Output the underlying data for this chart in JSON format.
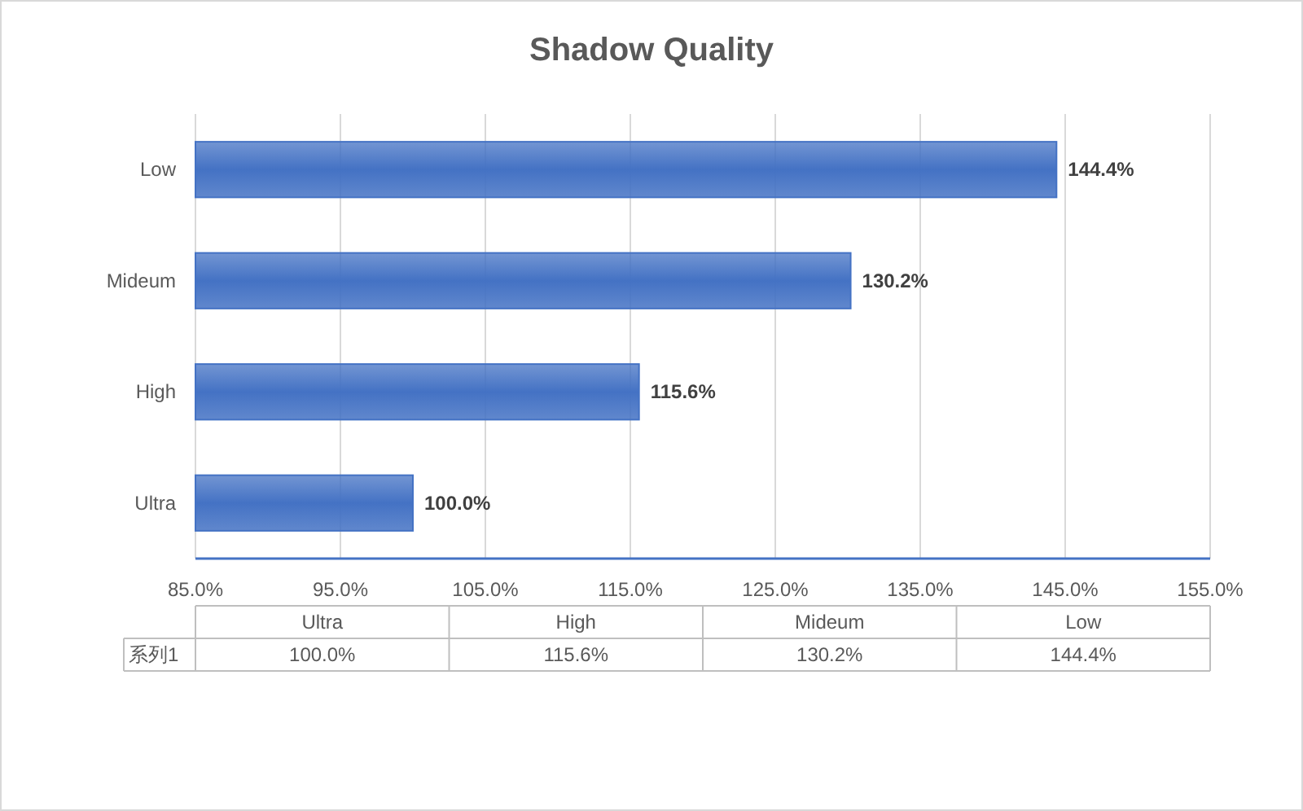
{
  "chart_data": {
    "type": "bar",
    "orientation": "horizontal",
    "title": "Shadow Quality",
    "categories": [
      "Low",
      "Mideum",
      "High",
      "Ultra"
    ],
    "series": [
      {
        "name": "系列1",
        "color": "#4472c4",
        "values": [
          144.4,
          130.2,
          115.6,
          100.0
        ],
        "value_labels": [
          "144.4%",
          "130.2%",
          "115.6%",
          "100.0%"
        ]
      }
    ],
    "xlim": [
      85,
      155
    ],
    "xticks": [
      {
        "value": 85,
        "label": "85.0%"
      },
      {
        "value": 95,
        "label": "95.0%"
      },
      {
        "value": 105,
        "label": "105.0%"
      },
      {
        "value": 115,
        "label": "115.0%"
      },
      {
        "value": 125,
        "label": "125.0%"
      },
      {
        "value": 135,
        "label": "135.0%"
      },
      {
        "value": 145,
        "label": "145.0%"
      },
      {
        "value": 155,
        "label": "155.0%"
      }
    ],
    "grid": "x"
  }
}
